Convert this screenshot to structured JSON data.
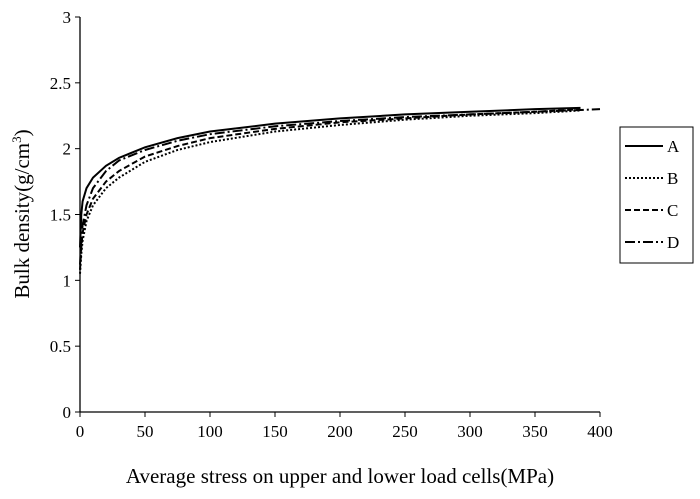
{
  "chart_data": {
    "type": "line",
    "title": "",
    "xlabel": "Average stress on upper and lower load cells(MPa)",
    "ylabel_main": "Bulk density(g/cm",
    "ylabel_sup": "3",
    "ylabel_close": ")",
    "xlim": [
      0,
      400
    ],
    "ylim": [
      0,
      3
    ],
    "x_ticks": [
      "0",
      "50",
      "100",
      "150",
      "200",
      "250",
      "300",
      "350",
      "400"
    ],
    "y_ticks": [
      "0",
      "0.5",
      "1",
      "1.5",
      "2",
      "2.5",
      "3"
    ],
    "grid": false,
    "legend_position": "right",
    "series": [
      {
        "name": "A",
        "dash": "solid",
        "x": [
          0,
          1,
          2,
          5,
          10,
          20,
          30,
          50,
          75,
          100,
          150,
          200,
          250,
          300,
          350,
          385
        ],
        "y": [
          1.25,
          1.5,
          1.6,
          1.7,
          1.78,
          1.87,
          1.93,
          2.01,
          2.08,
          2.13,
          2.19,
          2.23,
          2.26,
          2.28,
          2.3,
          2.31
        ]
      },
      {
        "name": "B",
        "dash": "dotted",
        "x": [
          0,
          1,
          2,
          5,
          10,
          20,
          30,
          50,
          75,
          100,
          150,
          200,
          250,
          300,
          350,
          385
        ],
        "y": [
          1.05,
          1.2,
          1.3,
          1.45,
          1.57,
          1.7,
          1.78,
          1.9,
          1.99,
          2.05,
          2.13,
          2.18,
          2.22,
          2.25,
          2.27,
          2.29
        ]
      },
      {
        "name": "C",
        "dash": "dashed",
        "x": [
          0,
          1,
          2,
          5,
          10,
          20,
          30,
          50,
          75,
          100,
          150,
          200,
          250,
          300,
          350,
          385
        ],
        "y": [
          1.08,
          1.25,
          1.36,
          1.5,
          1.62,
          1.75,
          1.83,
          1.94,
          2.02,
          2.08,
          2.15,
          2.2,
          2.23,
          2.26,
          2.28,
          2.3
        ]
      },
      {
        "name": "D",
        "dash": "dashdot",
        "x": [
          0,
          1,
          2,
          5,
          10,
          20,
          30,
          50,
          75,
          100,
          150,
          200,
          250,
          300,
          350,
          400
        ],
        "y": [
          1.12,
          1.3,
          1.42,
          1.57,
          1.7,
          1.83,
          1.91,
          1.99,
          2.06,
          2.11,
          2.17,
          2.21,
          2.24,
          2.26,
          2.28,
          2.3
        ]
      }
    ]
  }
}
